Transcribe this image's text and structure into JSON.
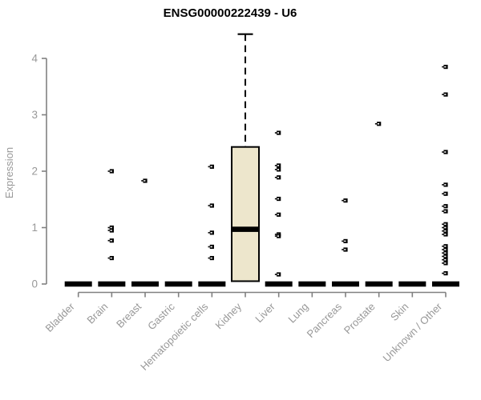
{
  "chart_data": {
    "type": "boxplot",
    "title": "ENSG00000222439 - U6",
    "ylabel": "Expression",
    "xlabel": "",
    "yticks": [
      0,
      1,
      2,
      3,
      4
    ],
    "ylim": [
      0,
      4.6
    ],
    "grid": false,
    "legend": "none",
    "categories": [
      "Bladder",
      "Brain",
      "Breast",
      "Gastric",
      "Hematopoietic cells",
      "Kidney",
      "Liver",
      "Lung",
      "Pancreas",
      "Prostate",
      "Skin",
      "Unknown / Other"
    ],
    "boxes": [
      {
        "category": "Bladder",
        "median": 0,
        "q1": 0,
        "q3": 0,
        "whisker_low": 0,
        "whisker_high": 0,
        "outliers": []
      },
      {
        "category": "Brain",
        "median": 0,
        "q1": 0,
        "q3": 0,
        "whisker_low": 0,
        "whisker_high": 0,
        "outliers": [
          2.0,
          1.0,
          0.95,
          0.77,
          0.46
        ]
      },
      {
        "category": "Breast",
        "median": 0,
        "q1": 0,
        "q3": 0,
        "whisker_low": 0,
        "whisker_high": 0,
        "outliers": [
          1.83
        ]
      },
      {
        "category": "Gastric",
        "median": 0,
        "q1": 0,
        "q3": 0,
        "whisker_low": 0,
        "whisker_high": 0,
        "outliers": []
      },
      {
        "category": "Hematopoietic cells",
        "median": 0,
        "q1": 0,
        "q3": 0,
        "whisker_low": 0,
        "whisker_high": 0,
        "outliers": [
          2.08,
          1.39,
          0.91,
          0.66,
          0.46
        ]
      },
      {
        "category": "Kidney",
        "median": 0.97,
        "q1": 0.05,
        "q3": 2.43,
        "whisker_low": 0,
        "whisker_high": 4.43,
        "outliers": []
      },
      {
        "category": "Liver",
        "median": 0,
        "q1": 0,
        "q3": 0,
        "whisker_low": 0,
        "whisker_high": 0,
        "outliers": [
          2.68,
          2.1,
          2.03,
          1.89,
          1.51,
          1.23,
          0.88,
          0.85,
          0.17
        ]
      },
      {
        "category": "Lung",
        "median": 0,
        "q1": 0,
        "q3": 0,
        "whisker_low": 0,
        "whisker_high": 0,
        "outliers": []
      },
      {
        "category": "Pancreas",
        "median": 0,
        "q1": 0,
        "q3": 0,
        "whisker_low": 0,
        "whisker_high": 0,
        "outliers": [
          1.48,
          0.76,
          0.61
        ]
      },
      {
        "category": "Prostate",
        "median": 0,
        "q1": 0,
        "q3": 0,
        "whisker_low": 0,
        "whisker_high": 0,
        "outliers": [
          2.84
        ]
      },
      {
        "category": "Skin",
        "median": 0,
        "q1": 0,
        "q3": 0,
        "whisker_low": 0,
        "whisker_high": 0,
        "outliers": []
      },
      {
        "category": "Unknown / Other",
        "median": 0,
        "q1": 0,
        "q3": 0,
        "whisker_low": 0,
        "whisker_high": 0,
        "outliers": [
          3.85,
          3.36,
          2.34,
          1.76,
          1.6,
          1.38,
          1.29,
          1.06,
          1.0,
          0.94,
          0.88,
          0.67,
          0.61,
          0.55,
          0.49,
          0.43,
          0.37,
          0.19
        ]
      }
    ],
    "colors": {
      "background": "#ffffff",
      "box_fill": "#EDE6CC",
      "box_stroke": "#000000",
      "median": "#000000",
      "outlier": "#000000",
      "axis": "#808080",
      "tick_label": "#989898",
      "title": "#000000"
    }
  }
}
